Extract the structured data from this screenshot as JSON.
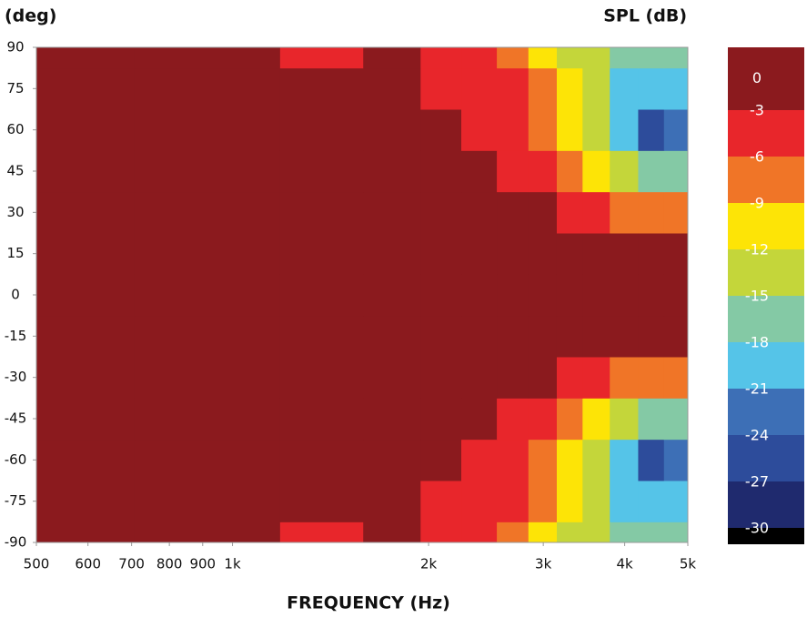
{
  "chart_data": {
    "type": "contour",
    "y_axis_title": "(deg)",
    "colorbar_title": "SPL (dB)",
    "x_axis_title": "FREQUENCY (Hz)",
    "log_x": true,
    "xlim": [
      500,
      5000
    ],
    "xticks": [
      500,
      600,
      700,
      800,
      900,
      {
        "value": 1000,
        "label": "1k"
      },
      {
        "value": 2000,
        "label": "2k"
      },
      {
        "value": 3000,
        "label": "3k"
      },
      {
        "value": 4000,
        "label": "4k"
      },
      {
        "value": 5000,
        "label": "5k"
      }
    ],
    "ylim": [
      -90,
      90
    ],
    "yticks": [
      90,
      75,
      60,
      45,
      30,
      15,
      0,
      -15,
      -30,
      -45,
      -60,
      -75,
      -90
    ],
    "x": [
      500,
      1000,
      1400,
      1800,
      2100,
      2400,
      2700,
      3000,
      3300,
      3600,
      4000,
      4400,
      4800
    ],
    "y": [
      -90,
      -75,
      -60,
      -45,
      -30,
      -15,
      0,
      15,
      30,
      45,
      60,
      75,
      90
    ],
    "z": [
      [
        0,
        0,
        -3.5,
        -1,
        -4,
        -5,
        -7,
        -10,
        -13,
        -15,
        -17,
        -16,
        -16
      ],
      [
        0,
        0,
        0,
        -1,
        -4,
        -5,
        -6,
        -9,
        -12,
        -15,
        -19,
        -20,
        -20
      ],
      [
        0,
        0,
        0,
        -1,
        -2,
        -4,
        -5,
        -7,
        -10,
        -14,
        -21,
        -25,
        -22
      ],
      [
        0,
        0,
        0,
        0,
        -1,
        -2,
        -4,
        -6,
        -8,
        -10,
        -14,
        -17,
        -18
      ],
      [
        0,
        0,
        0,
        0,
        0,
        -1,
        -2,
        -3,
        -4,
        -5,
        -7,
        -8,
        -9
      ],
      [
        0,
        0,
        0,
        0,
        0,
        0,
        0,
        -1,
        -1,
        -1,
        -1,
        -2,
        -2
      ],
      [
        0,
        0,
        0,
        0,
        0,
        0,
        0,
        0,
        -1,
        -1,
        -1,
        -1,
        -1
      ],
      [
        0,
        0,
        0,
        0,
        0,
        0,
        0,
        -1,
        -1,
        -1,
        -1,
        -2,
        -2
      ],
      [
        0,
        0,
        0,
        0,
        0,
        -1,
        -2,
        -3,
        -4,
        -5,
        -7,
        -8,
        -9
      ],
      [
        0,
        0,
        0,
        0,
        -1,
        -2,
        -4,
        -6,
        -8,
        -10,
        -14,
        -17,
        -18
      ],
      [
        0,
        0,
        0,
        -1,
        -2,
        -4,
        -5,
        -7,
        -10,
        -14,
        -21,
        -25,
        -22
      ],
      [
        0,
        0,
        0,
        -1,
        -4,
        -5,
        -6,
        -9,
        -12,
        -15,
        -19,
        -20,
        -20
      ],
      [
        0,
        0,
        -3.5,
        -1,
        -4,
        -5,
        -7,
        -10,
        -13,
        -15,
        -17,
        -16,
        -16
      ]
    ],
    "levels": [
      0,
      -3,
      -6,
      -9,
      -12,
      -15,
      -18,
      -21,
      -24,
      -27,
      -30
    ],
    "colors": [
      "#8b1a1e",
      "#e8262b",
      "#f07527",
      "#fde406",
      "#c4d63a",
      "#84c9a5",
      "#55c4e8",
      "#3d6fb6",
      "#2d4c9b",
      "#1f2a6e",
      "#000000"
    ]
  }
}
